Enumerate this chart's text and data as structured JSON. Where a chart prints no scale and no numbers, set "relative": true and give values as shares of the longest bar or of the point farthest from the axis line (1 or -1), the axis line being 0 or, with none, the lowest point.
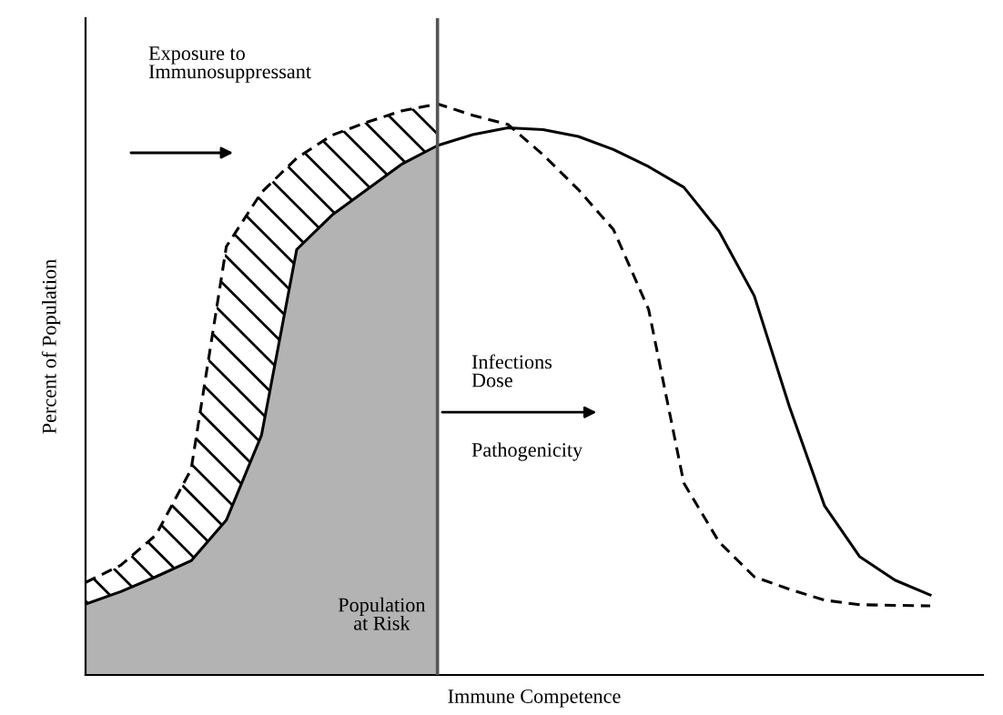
{
  "chart_data": {
    "type": "line",
    "relative": true,
    "xlabel": "Immune Competence",
    "ylabel": "Percent of Population",
    "categories": [
      null,
      null,
      null,
      null,
      null,
      null,
      null,
      null,
      null,
      null,
      null,
      null,
      null,
      null,
      null,
      null,
      null,
      null,
      null,
      null,
      null,
      null,
      null,
      null,
      null
    ],
    "series": [
      {
        "type": "area",
        "color": "#b3b3b3",
        "values": [
          0.124,
          0.146,
          0.172,
          0.2,
          0.271,
          0.42,
          0.745,
          0.805,
          0.85,
          0.895,
          0.927,
          null,
          null,
          null,
          null,
          null,
          null,
          null,
          null,
          null,
          null,
          null,
          null,
          null,
          null
        ]
      },
      {
        "color": "#000000",
        "line_style": "solid",
        "values": [
          0.124,
          0.146,
          0.172,
          0.2,
          0.271,
          0.42,
          0.745,
          0.805,
          0.85,
          0.895,
          0.927,
          0.946,
          0.958,
          0.955,
          0.943,
          0.92,
          0.89,
          0.854,
          0.777,
          0.664,
          0.47,
          0.296,
          0.207,
          0.166,
          0.14
        ]
      },
      {
        "color": "#000000",
        "line_style": "dashed",
        "values": [
          0.162,
          0.192,
          0.245,
          0.36,
          0.75,
          0.845,
          0.905,
          0.945,
          0.968,
          0.988,
          1,
          0.98,
          0.964,
          0.911,
          0.85,
          0.78,
          0.64,
          0.336,
          0.233,
          0.172,
          0.15,
          0.131,
          0.123,
          0.122,
          0.121
        ],
        "lower": [
          0.124,
          0.146,
          0.172,
          0.2,
          0.271,
          0.42,
          0.745,
          0.805,
          0.85,
          0.895,
          0.927,
          null,
          null,
          null,
          null,
          null,
          null,
          null,
          null,
          null,
          null,
          null,
          null,
          null,
          null
        ],
        "upper": [
          0.162,
          0.192,
          0.245,
          0.36,
          0.75,
          0.845,
          0.905,
          0.945,
          0.968,
          0.988,
          1,
          null,
          null,
          null,
          null,
          null,
          null,
          null,
          null,
          null,
          null,
          null,
          null,
          null,
          null
        ]
      }
    ],
    "annotations": [
      "Exposure to\nImmunosuppressant",
      "Infections\nDose",
      "Pathogenicity",
      "Population\nat Risk"
    ]
  }
}
